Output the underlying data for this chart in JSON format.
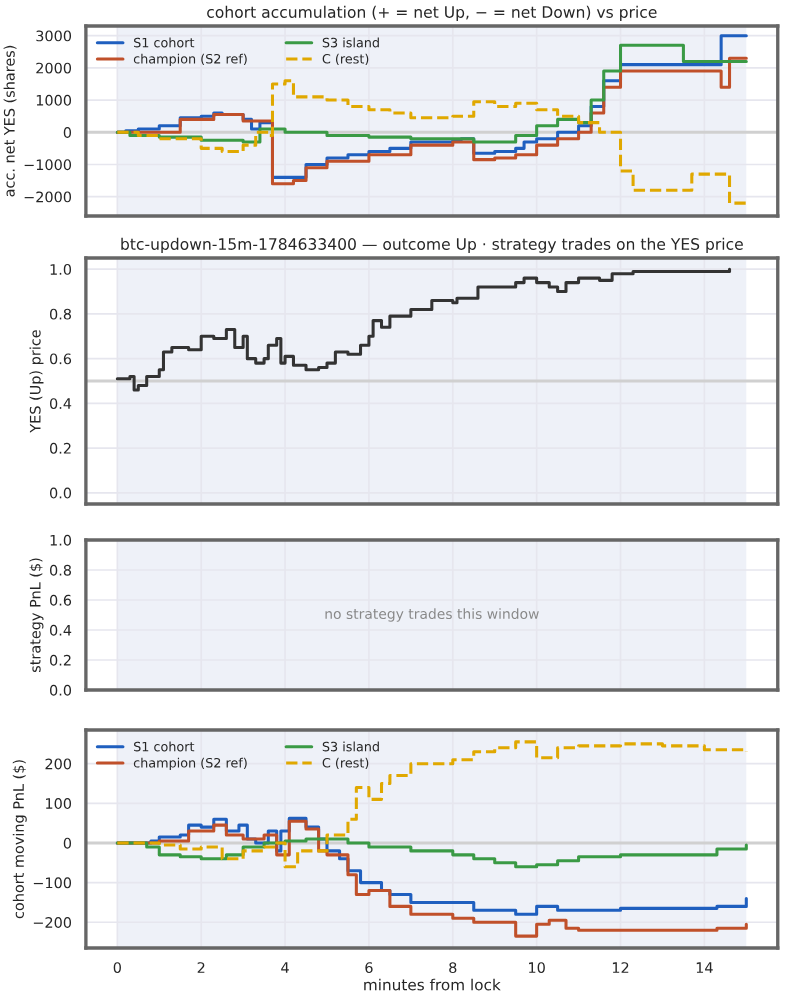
{
  "chart_data": [
    {
      "type": "step",
      "title": "cohort accumulation (+ = net Up, − = net Down) vs price",
      "ylabel": "acc. net YES (shares)",
      "xlim": [
        -0.75,
        15.75
      ],
      "xticks": [
        0,
        2,
        4,
        6,
        8,
        10,
        12,
        14
      ],
      "ylim": [
        -2600,
        3300
      ],
      "yticks": [
        {
          "value": -2000,
          "label": "−2000"
        },
        {
          "value": -1000,
          "label": "−1000"
        },
        0,
        1000,
        2000,
        3000
      ],
      "tick_labels": "y",
      "grid": true,
      "legend": "top left",
      "bands": [
        {
          "axis": "x",
          "from": 0,
          "to": 15,
          "color": "#eef1f8"
        }
      ],
      "ref_lines": [
        {
          "axis": "y",
          "value": 0,
          "color": "#d0d0d0"
        }
      ],
      "series": [
        {
          "name": "S1 cohort",
          "color": "#1f5fbf",
          "line_style": "solid",
          "x": [
            0,
            0.2,
            0.5,
            1,
            1.5,
            2,
            2.3,
            2.5,
            3,
            3.2,
            3.4,
            3.7,
            4.2,
            4.5,
            5,
            5.5,
            6,
            6.5,
            7,
            8,
            8.2,
            8.5,
            9,
            9.5,
            9.7,
            10,
            10.5,
            11,
            11.3,
            11.6,
            12,
            14.4,
            15
          ],
          "values": [
            0,
            50,
            100,
            200,
            450,
            500,
            600,
            550,
            400,
            100,
            300,
            -1400,
            -1400,
            -1000,
            -800,
            -700,
            -600,
            -500,
            -300,
            -250,
            -200,
            -650,
            -600,
            -500,
            -300,
            -200,
            0,
            200,
            800,
            1600,
            2100,
            3000,
            3000
          ]
        },
        {
          "name": "champion (S2 ref)",
          "color": "#c0502a",
          "line_style": "solid",
          "x": [
            0,
            1.5,
            2.3,
            3,
            3.7,
            4.2,
            4.5,
            5,
            6,
            7,
            8,
            8.5,
            9,
            9.5,
            10,
            10.5,
            11,
            11.3,
            11.6,
            12,
            14.4,
            14.6,
            15
          ],
          "values": [
            0,
            400,
            550,
            350,
            -1600,
            -1500,
            -1100,
            -900,
            -700,
            -400,
            -300,
            -850,
            -800,
            -700,
            -400,
            -200,
            0,
            600,
            1400,
            1900,
            1400,
            2300,
            2300
          ]
        },
        {
          "name": "S3 island",
          "color": "#3a9a45",
          "line_style": "solid",
          "x": [
            0,
            0.3,
            1,
            2,
            3,
            3.4,
            3.7,
            4,
            5,
            6,
            7,
            8,
            8.5,
            9,
            9.5,
            10,
            10.5,
            11,
            11.3,
            11.6,
            12,
            13,
            13.5,
            15
          ],
          "values": [
            0,
            -100,
            -150,
            -250,
            -300,
            100,
            100,
            0,
            -100,
            -150,
            -200,
            -200,
            -300,
            -300,
            -100,
            200,
            400,
            300,
            1000,
            1900,
            2700,
            2700,
            2200,
            2200
          ]
        },
        {
          "name": "C (rest)",
          "color": "#e0a800",
          "line_style": "dashed",
          "x": [
            0,
            0.5,
            1,
            2,
            2.5,
            3,
            3.3,
            3.6,
            3.7,
            4,
            4.2,
            5,
            5.5,
            6,
            6.5,
            7,
            8,
            8.5,
            9,
            9.5,
            10,
            10.5,
            11,
            11.5,
            12,
            12.3,
            13.5,
            13.7,
            14.4,
            14.6,
            15
          ],
          "values": [
            0,
            -100,
            -200,
            -500,
            -600,
            -400,
            0,
            -100,
            1500,
            1600,
            1100,
            1000,
            800,
            700,
            600,
            450,
            500,
            950,
            800,
            900,
            700,
            500,
            300,
            0,
            -1200,
            -1800,
            -1800,
            -1300,
            -1300,
            -2200,
            -2200
          ]
        }
      ]
    },
    {
      "type": "step",
      "title": "btc-updown-15m-1784633400 — outcome Up · strategy trades on the YES price",
      "ylabel": "YES (Up) price",
      "xlim": [
        -0.75,
        15.75
      ],
      "xticks": [
        0,
        2,
        4,
        6,
        8,
        10,
        12,
        14
      ],
      "ylim": [
        -0.05,
        1.05
      ],
      "yticks": [
        {
          "value": 0,
          "label": "0.0"
        },
        {
          "value": 0.2,
          "label": "0.2"
        },
        {
          "value": 0.4,
          "label": "0.4"
        },
        {
          "value": 0.6,
          "label": "0.6"
        },
        {
          "value": 0.8,
          "label": "0.8"
        },
        {
          "value": 1,
          "label": "1.0"
        }
      ],
      "tick_labels": "y",
      "grid": true,
      "bands": [
        {
          "axis": "x",
          "from": 0,
          "to": 15,
          "color": "#eef1f8"
        }
      ],
      "ref_lines": [
        {
          "axis": "y",
          "value": 0.5,
          "color": "#d0d0d0"
        }
      ],
      "series": [
        {
          "color": "#333333",
          "line_style": "solid",
          "x": [
            0,
            0.3,
            0.4,
            0.5,
            0.7,
            1.0,
            1.1,
            1.3,
            1.7,
            2.0,
            2.3,
            2.6,
            2.8,
            3.0,
            3.1,
            3.3,
            3.5,
            3.6,
            3.8,
            3.9,
            4.0,
            4.2,
            4.5,
            4.8,
            5.0,
            5.2,
            5.5,
            5.8,
            6.0,
            6.1,
            6.3,
            6.5,
            7.0,
            7.5,
            8.0,
            8.1,
            8.6,
            9.0,
            9.5,
            9.7,
            10.0,
            10.3,
            10.5,
            10.7,
            11.0,
            11.5,
            11.8,
            12.3,
            14.6
          ],
          "values": [
            0.51,
            0.52,
            0.46,
            0.48,
            0.52,
            0.55,
            0.63,
            0.65,
            0.64,
            0.7,
            0.69,
            0.73,
            0.65,
            0.7,
            0.6,
            0.58,
            0.6,
            0.66,
            0.69,
            0.58,
            0.61,
            0.57,
            0.55,
            0.56,
            0.58,
            0.63,
            0.62,
            0.66,
            0.7,
            0.77,
            0.74,
            0.79,
            0.82,
            0.86,
            0.85,
            0.87,
            0.92,
            0.92,
            0.94,
            0.96,
            0.94,
            0.92,
            0.9,
            0.94,
            0.96,
            0.95,
            0.98,
            0.99,
            1.0
          ]
        }
      ]
    },
    {
      "type": "line",
      "ylabel": "strategy PnL ($)",
      "xlim": [
        -0.75,
        15.75
      ],
      "xticks": [
        0,
        2,
        4,
        6,
        8,
        10,
        12,
        14
      ],
      "ylim": [
        0,
        1
      ],
      "yticks": [
        {
          "value": 0,
          "label": "0.0"
        },
        {
          "value": 0.2,
          "label": "0.2"
        },
        {
          "value": 0.4,
          "label": "0.4"
        },
        {
          "value": 0.6,
          "label": "0.6"
        },
        {
          "value": 0.8,
          "label": "0.8"
        },
        {
          "value": 1,
          "label": "1.0"
        }
      ],
      "tick_labels": "y",
      "grid": true,
      "bands": [
        {
          "axis": "x",
          "from": 0,
          "to": 15,
          "color": "#eef1f8"
        }
      ],
      "annotations": [
        "no strategy trades this window"
      ]
    },
    {
      "type": "step",
      "xlabel": "minutes from lock",
      "ylabel": "cohort moving PnL ($)",
      "xlim": [
        -0.75,
        15.75
      ],
      "xticks": [
        0,
        2,
        4,
        6,
        8,
        10,
        12,
        14
      ],
      "ylim": [
        -265,
        285
      ],
      "yticks": [
        {
          "value": -200,
          "label": "−200"
        },
        {
          "value": -100,
          "label": "−100"
        },
        0,
        100,
        200
      ],
      "grid": true,
      "legend": "top left",
      "bands": [
        {
          "axis": "x",
          "from": 0,
          "to": 15,
          "color": "#eef1f8"
        }
      ],
      "ref_lines": [
        {
          "axis": "y",
          "value": 0,
          "color": "#d0d0d0"
        }
      ],
      "series": [
        {
          "name": "S1 cohort",
          "color": "#1f5fbf",
          "line_style": "solid",
          "x": [
            0,
            0.8,
            1,
            1.5,
            1.7,
            2,
            2.3,
            2.6,
            2.9,
            3.1,
            3.3,
            3.6,
            3.8,
            3.9,
            4.1,
            4.5,
            4.8,
            5,
            5.3,
            5.5,
            5.8,
            6.3,
            6.5,
            7,
            8.5,
            9.5,
            10,
            10.5,
            12,
            14.3,
            15
          ],
          "values": [
            0,
            5,
            15,
            20,
            45,
            40,
            60,
            30,
            45,
            10,
            0,
            30,
            -20,
            30,
            62,
            40,
            10,
            -20,
            -40,
            -70,
            -100,
            -120,
            -130,
            -150,
            -170,
            -180,
            -160,
            -170,
            -165,
            -160,
            -140
          ]
        },
        {
          "name": "champion (S2 ref)",
          "color": "#c0502a",
          "line_style": "solid",
          "x": [
            0,
            1,
            1.7,
            2.3,
            2.6,
            3,
            3.5,
            3.8,
            4.1,
            4.5,
            4.8,
            5,
            5.5,
            5.7,
            6,
            6.5,
            7,
            8,
            8.5,
            9.5,
            10,
            10.3,
            10.7,
            11,
            14.3,
            15
          ],
          "values": [
            0,
            5,
            30,
            45,
            20,
            10,
            20,
            -30,
            55,
            35,
            -20,
            -30,
            -80,
            -130,
            -120,
            -160,
            -180,
            -190,
            -200,
            -235,
            -205,
            -195,
            -215,
            -220,
            -215,
            -205
          ]
        },
        {
          "name": "S3 island",
          "color": "#3a9a45",
          "line_style": "solid",
          "x": [
            0,
            0.7,
            1,
            1.5,
            2,
            2.6,
            3,
            3.5,
            4,
            4.5,
            5.5,
            6,
            7,
            8,
            8.5,
            9,
            9.5,
            10,
            10.5,
            11,
            12,
            14.3,
            15
          ],
          "values": [
            0,
            -10,
            -30,
            -35,
            -40,
            -30,
            -10,
            0,
            5,
            10,
            0,
            -10,
            -20,
            -30,
            -40,
            -50,
            -60,
            -55,
            -45,
            -35,
            -30,
            -15,
            -5
          ]
        },
        {
          "name": "C (rest)",
          "color": "#e0a800",
          "line_style": "dashed",
          "x": [
            0,
            1,
            1.5,
            2,
            2.5,
            3,
            3.5,
            3.8,
            4,
            4.3,
            5,
            5.5,
            5.7,
            6,
            6.3,
            6.5,
            7,
            8,
            8.5,
            9,
            9.5,
            10,
            10.5,
            11,
            12,
            13,
            14,
            15
          ],
          "values": [
            0,
            -5,
            -15,
            -10,
            -40,
            -20,
            -10,
            0,
            -60,
            -20,
            20,
            60,
            140,
            110,
            150,
            170,
            200,
            210,
            230,
            240,
            255,
            215,
            240,
            245,
            250,
            245,
            235,
            230
          ]
        }
      ]
    }
  ]
}
